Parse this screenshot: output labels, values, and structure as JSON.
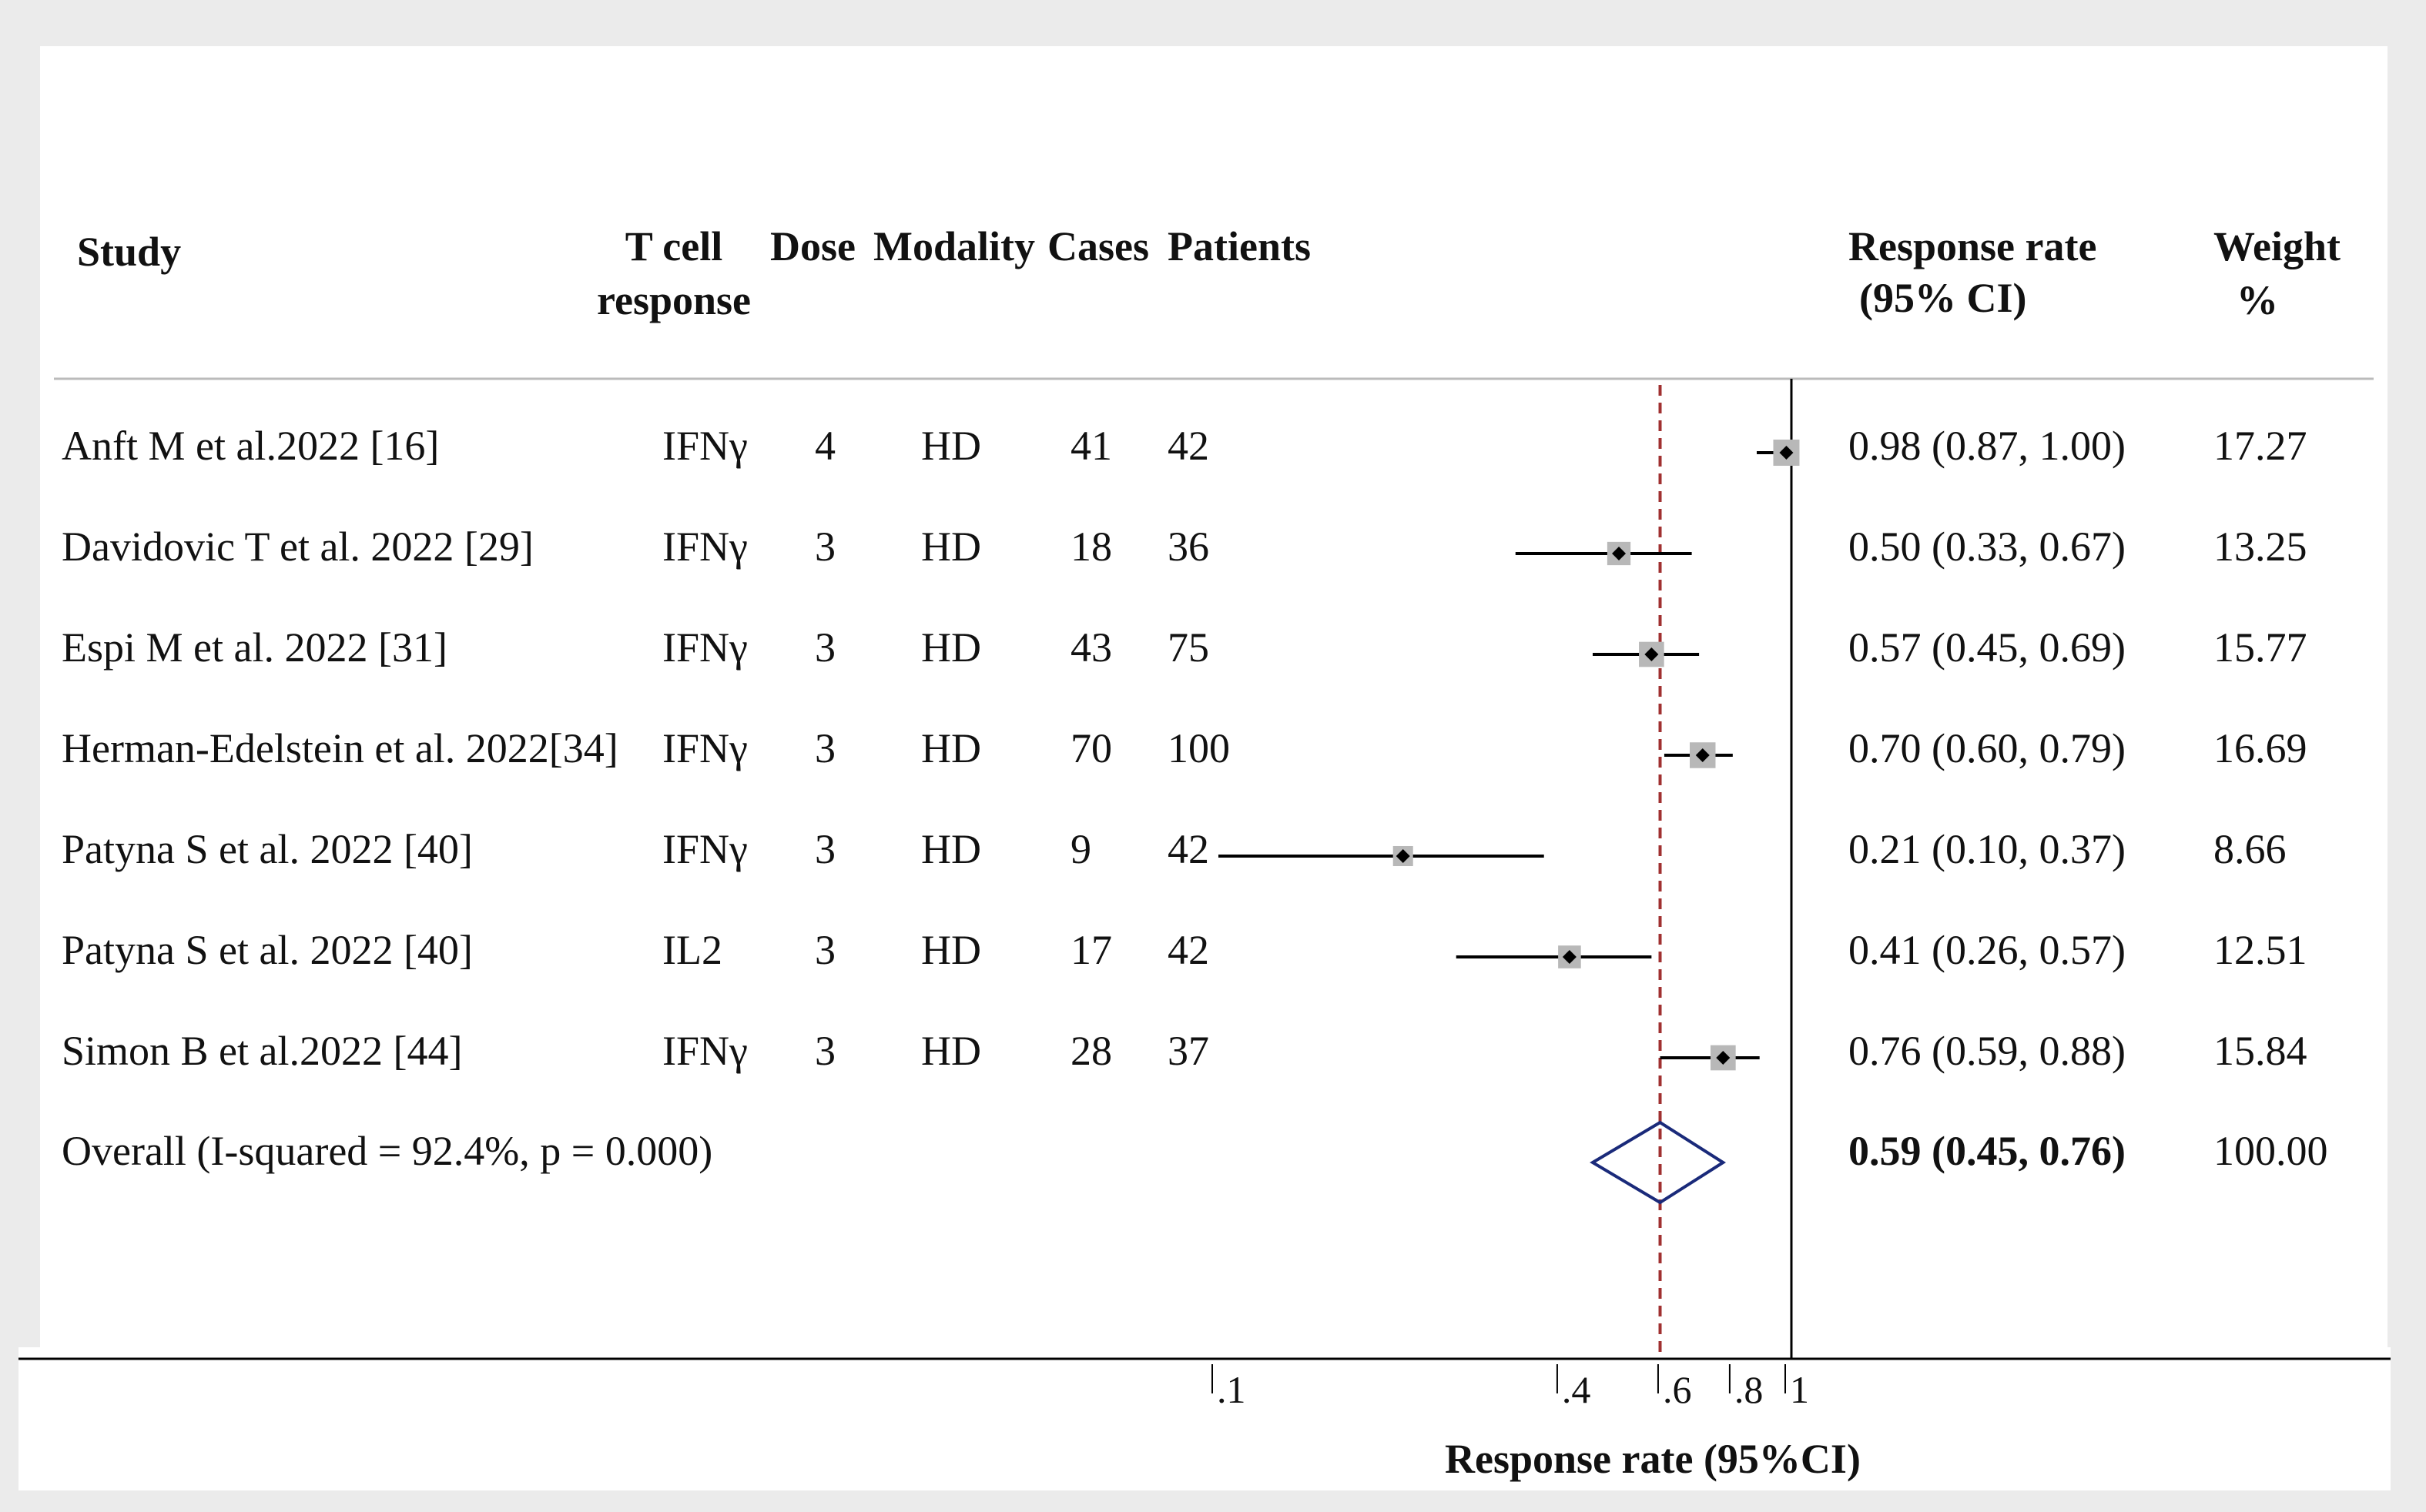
{
  "header": {
    "study": "Study",
    "tcell_line1": "T cell",
    "tcell_line2": "response",
    "dose": "Dose",
    "modality": "Modality",
    "cases": "Cases",
    "patients": "Patients",
    "response_line1": "Response rate",
    "response_line2": "(95% CI)",
    "weight_line1": "Weight",
    "weight_line2": "%"
  },
  "rows": [
    {
      "study": "Anft M et al.2022 [16]",
      "tcell": "IFNγ",
      "dose": "4",
      "modality": "HD",
      "cases": "41",
      "patients": "42",
      "ci_text": "0.98 (0.87, 1.00)",
      "weight": "17.27"
    },
    {
      "study": "Davidovic T et al. 2022 [29]",
      "tcell": "IFNγ",
      "dose": "3",
      "modality": "HD",
      "cases": "18",
      "patients": "36",
      "ci_text": "0.50 (0.33, 0.67)",
      "weight": "13.25"
    },
    {
      "study": "Espi M et al. 2022 [31]",
      "tcell": "IFNγ",
      "dose": "3",
      "modality": "HD",
      "cases": "43",
      "patients": "75",
      "ci_text": "0.57 (0.45, 0.69)",
      "weight": "15.77"
    },
    {
      "study": "Herman-Edelstein et al. 2022[34]",
      "tcell": "IFNγ",
      "dose": "3",
      "modality": "HD",
      "cases": "70",
      "patients": "100",
      "ci_text": "0.70 (0.60, 0.79)",
      "weight": "16.69"
    },
    {
      "study": "Patyna S  et al. 2022 [40]",
      "tcell": "IFNγ",
      "dose": "3",
      "modality": "HD",
      "cases": "9",
      "patients": "42",
      "ci_text": "0.21 (0.10, 0.37)",
      "weight": "8.66"
    },
    {
      "study": "Patyna S  et al. 2022 [40]",
      "tcell": "IL2",
      "dose": "3",
      "modality": "HD",
      "cases": "17",
      "patients": "42",
      "ci_text": "0.41 (0.26, 0.57)",
      "weight": "12.51"
    },
    {
      "study": "Simon B et al.2022 [44]",
      "tcell": "IFNγ",
      "dose": "3",
      "modality": "HD",
      "cases": "28",
      "patients": "37",
      "ci_text": "0.76 (0.59, 0.88)",
      "weight": "15.84"
    }
  ],
  "overall": {
    "label": "Overall  (I-squared = 92.4%, p = 0.000)",
    "ci_text": "0.59 (0.45, 0.76)",
    "weight": "100.00"
  },
  "chart_data": {
    "type": "forest",
    "x_scale": "log",
    "xlabel": "Response rate (95%CI)",
    "x_ticks": [
      0.1,
      0.4,
      0.6,
      0.8,
      1
    ],
    "x_tick_labels": [
      ".1",
      ".4",
      ".6",
      ".8",
      "1"
    ],
    "reference_line": 1,
    "pooled_line": 0.59,
    "studies": [
      {
        "estimate": 0.98,
        "lower": 0.87,
        "upper": 1.0,
        "weight": 17.27
      },
      {
        "estimate": 0.5,
        "lower": 0.33,
        "upper": 0.67,
        "weight": 13.25
      },
      {
        "estimate": 0.57,
        "lower": 0.45,
        "upper": 0.69,
        "weight": 15.77
      },
      {
        "estimate": 0.7,
        "lower": 0.6,
        "upper": 0.79,
        "weight": 16.69
      },
      {
        "estimate": 0.21,
        "lower": 0.1,
        "upper": 0.37,
        "weight": 8.66
      },
      {
        "estimate": 0.41,
        "lower": 0.26,
        "upper": 0.57,
        "weight": 12.51
      },
      {
        "estimate": 0.76,
        "lower": 0.59,
        "upper": 0.88,
        "weight": 15.84
      }
    ],
    "overall": {
      "estimate": 0.59,
      "lower": 0.45,
      "upper": 0.76
    },
    "colors": {
      "line": "#000000",
      "box": "#b8b8b8",
      "diamond": "#1a2a7a",
      "pooled": "#a03030"
    }
  }
}
